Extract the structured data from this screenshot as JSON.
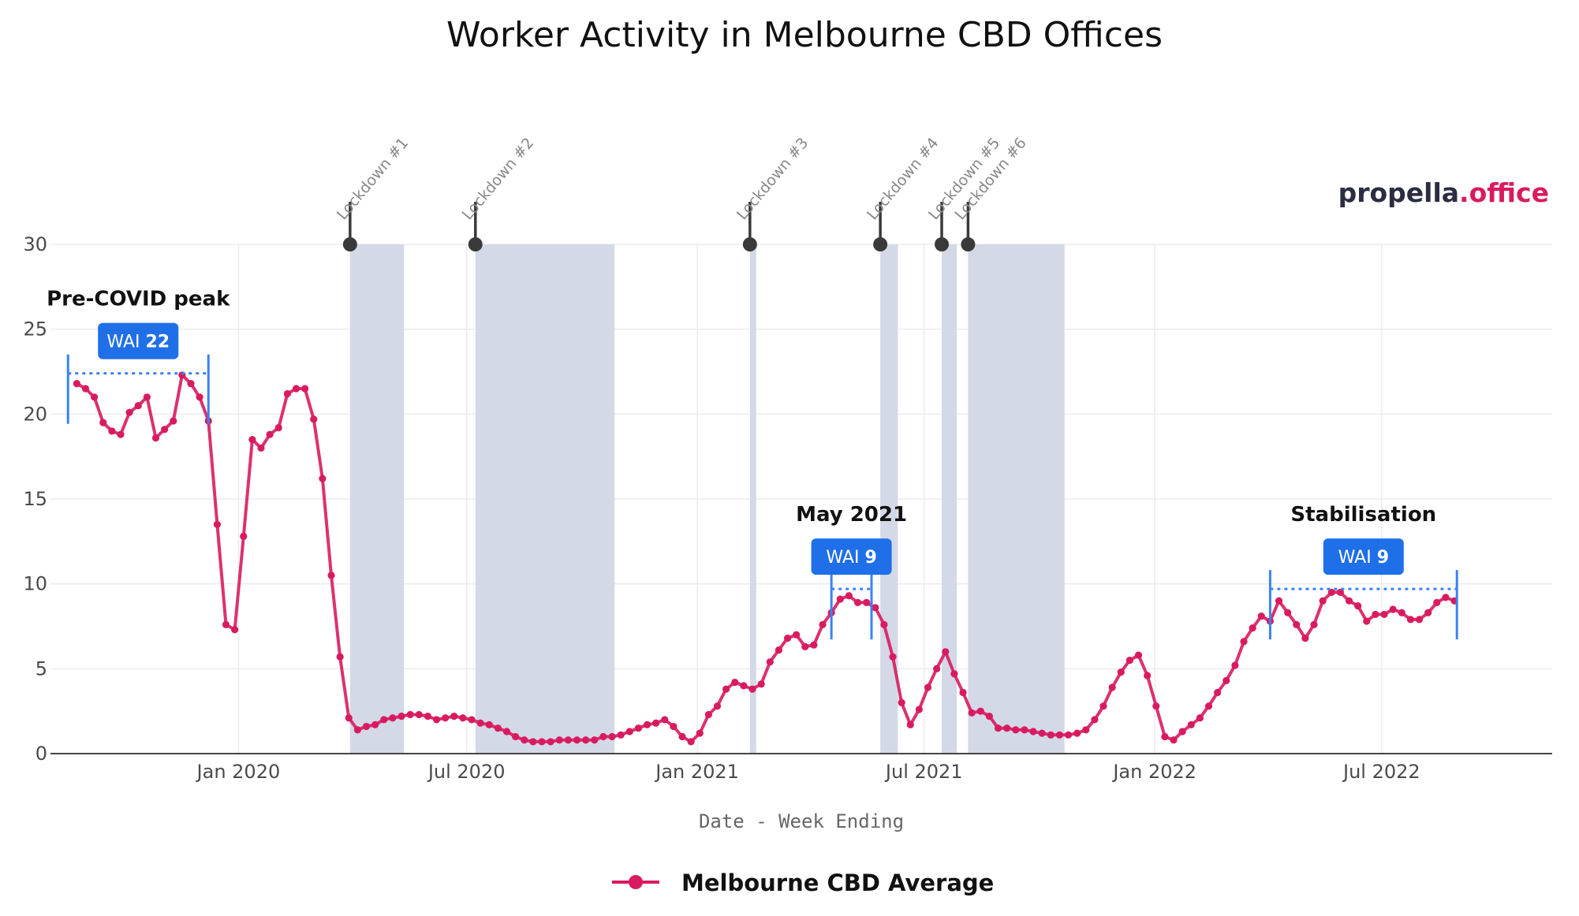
{
  "chart_data": {
    "type": "line",
    "title": "Worker Activity in Melbourne CBD Offices",
    "xlabel": "Date - Week Ending",
    "ylabel": "",
    "ylim": [
      0,
      30
    ],
    "yticks": [
      0,
      5,
      10,
      15,
      20,
      25,
      30
    ],
    "xlim": [
      "2019-08-04",
      "2022-11-14"
    ],
    "xticks": [
      {
        "date": "2020-01-01",
        "label": "Jan 2020"
      },
      {
        "date": "2020-07-01",
        "label": "Jul 2020"
      },
      {
        "date": "2021-01-01",
        "label": "Jan 2021"
      },
      {
        "date": "2021-07-01",
        "label": "Jul 2021"
      },
      {
        "date": "2022-01-01",
        "label": "Jan 2022"
      },
      {
        "date": "2022-07-01",
        "label": "Jul 2022"
      }
    ],
    "grid": true,
    "legend_position": "bottom-center",
    "series": [
      {
        "name": "Melbourne CBD Average",
        "color": "#d81b60",
        "points": [
          [
            "2019-08-25",
            21.8
          ],
          [
            "2019-09-01",
            21.5
          ],
          [
            "2019-09-08",
            21.0
          ],
          [
            "2019-09-15",
            19.5
          ],
          [
            "2019-09-22",
            19.0
          ],
          [
            "2019-09-29",
            18.8
          ],
          [
            "2019-10-06",
            20.1
          ],
          [
            "2019-10-13",
            20.5
          ],
          [
            "2019-10-20",
            21.0
          ],
          [
            "2019-10-27",
            18.6
          ],
          [
            "2019-11-03",
            19.1
          ],
          [
            "2019-11-10",
            19.6
          ],
          [
            "2019-11-17",
            22.3
          ],
          [
            "2019-11-24",
            21.8
          ],
          [
            "2019-12-01",
            21.0
          ],
          [
            "2019-12-08",
            19.6
          ],
          [
            "2019-12-15",
            13.5
          ],
          [
            "2019-12-22",
            7.6
          ],
          [
            "2019-12-29",
            7.3
          ],
          [
            "2020-01-05",
            12.8
          ],
          [
            "2020-01-12",
            18.5
          ],
          [
            "2020-01-19",
            18.0
          ],
          [
            "2020-01-26",
            18.8
          ],
          [
            "2020-02-02",
            19.2
          ],
          [
            "2020-02-09",
            21.2
          ],
          [
            "2020-02-16",
            21.5
          ],
          [
            "2020-02-23",
            21.5
          ],
          [
            "2020-03-01",
            19.7
          ],
          [
            "2020-03-08",
            16.2
          ],
          [
            "2020-03-15",
            10.5
          ],
          [
            "2020-03-22",
            5.7
          ],
          [
            "2020-03-29",
            2.1
          ],
          [
            "2020-04-05",
            1.4
          ],
          [
            "2020-04-12",
            1.6
          ],
          [
            "2020-04-19",
            1.7
          ],
          [
            "2020-04-26",
            2.0
          ],
          [
            "2020-05-03",
            2.1
          ],
          [
            "2020-05-10",
            2.2
          ],
          [
            "2020-05-17",
            2.3
          ],
          [
            "2020-05-24",
            2.3
          ],
          [
            "2020-05-31",
            2.2
          ],
          [
            "2020-06-07",
            2.0
          ],
          [
            "2020-06-14",
            2.1
          ],
          [
            "2020-06-21",
            2.2
          ],
          [
            "2020-06-28",
            2.1
          ],
          [
            "2020-07-05",
            2.0
          ],
          [
            "2020-07-12",
            1.8
          ],
          [
            "2020-07-19",
            1.7
          ],
          [
            "2020-07-26",
            1.5
          ],
          [
            "2020-08-02",
            1.3
          ],
          [
            "2020-08-09",
            1.0
          ],
          [
            "2020-08-16",
            0.8
          ],
          [
            "2020-08-23",
            0.7
          ],
          [
            "2020-08-30",
            0.7
          ],
          [
            "2020-09-06",
            0.7
          ],
          [
            "2020-09-13",
            0.8
          ],
          [
            "2020-09-20",
            0.8
          ],
          [
            "2020-09-27",
            0.8
          ],
          [
            "2020-10-04",
            0.8
          ],
          [
            "2020-10-11",
            0.8
          ],
          [
            "2020-10-18",
            1.0
          ],
          [
            "2020-10-25",
            1.0
          ],
          [
            "2020-11-01",
            1.1
          ],
          [
            "2020-11-08",
            1.3
          ],
          [
            "2020-11-15",
            1.5
          ],
          [
            "2020-11-22",
            1.7
          ],
          [
            "2020-11-29",
            1.8
          ],
          [
            "2020-12-06",
            2.0
          ],
          [
            "2020-12-13",
            1.6
          ],
          [
            "2020-12-20",
            1.0
          ],
          [
            "2020-12-27",
            0.7
          ],
          [
            "2021-01-03",
            1.2
          ],
          [
            "2021-01-10",
            2.3
          ],
          [
            "2021-01-17",
            2.8
          ],
          [
            "2021-01-24",
            3.8
          ],
          [
            "2021-01-31",
            4.2
          ],
          [
            "2021-02-07",
            4.0
          ],
          [
            "2021-02-14",
            3.8
          ],
          [
            "2021-02-21",
            4.1
          ],
          [
            "2021-02-28",
            5.4
          ],
          [
            "2021-03-07",
            6.1
          ],
          [
            "2021-03-14",
            6.8
          ],
          [
            "2021-03-21",
            7.0
          ],
          [
            "2021-03-28",
            6.3
          ],
          [
            "2021-04-04",
            6.4
          ],
          [
            "2021-04-11",
            7.6
          ],
          [
            "2021-04-18",
            8.3
          ],
          [
            "2021-04-25",
            9.1
          ],
          [
            "2021-05-02",
            9.3
          ],
          [
            "2021-05-09",
            8.9
          ],
          [
            "2021-05-16",
            8.9
          ],
          [
            "2021-05-23",
            8.6
          ],
          [
            "2021-05-30",
            7.6
          ],
          [
            "2021-06-06",
            5.7
          ],
          [
            "2021-06-13",
            3.0
          ],
          [
            "2021-06-20",
            1.7
          ],
          [
            "2021-06-27",
            2.6
          ],
          [
            "2021-07-04",
            3.9
          ],
          [
            "2021-07-11",
            5.0
          ],
          [
            "2021-07-18",
            6.0
          ],
          [
            "2021-07-25",
            4.7
          ],
          [
            "2021-08-01",
            3.6
          ],
          [
            "2021-08-08",
            2.4
          ],
          [
            "2021-08-15",
            2.5
          ],
          [
            "2021-08-22",
            2.2
          ],
          [
            "2021-08-29",
            1.5
          ],
          [
            "2021-09-05",
            1.5
          ],
          [
            "2021-09-12",
            1.4
          ],
          [
            "2021-09-19",
            1.4
          ],
          [
            "2021-09-26",
            1.3
          ],
          [
            "2021-10-03",
            1.2
          ],
          [
            "2021-10-10",
            1.1
          ],
          [
            "2021-10-17",
            1.1
          ],
          [
            "2021-10-24",
            1.1
          ],
          [
            "2021-10-31",
            1.2
          ],
          [
            "2021-11-07",
            1.4
          ],
          [
            "2021-11-14",
            2.0
          ],
          [
            "2021-11-21",
            2.8
          ],
          [
            "2021-11-28",
            3.9
          ],
          [
            "2021-12-05",
            4.8
          ],
          [
            "2021-12-12",
            5.5
          ],
          [
            "2021-12-19",
            5.8
          ],
          [
            "2021-12-26",
            4.6
          ],
          [
            "2022-01-02",
            2.8
          ],
          [
            "2022-01-09",
            1.0
          ],
          [
            "2022-01-16",
            0.8
          ],
          [
            "2022-01-23",
            1.3
          ],
          [
            "2022-01-30",
            1.7
          ],
          [
            "2022-02-06",
            2.1
          ],
          [
            "2022-02-13",
            2.8
          ],
          [
            "2022-02-20",
            3.6
          ],
          [
            "2022-02-27",
            4.3
          ],
          [
            "2022-03-06",
            5.2
          ],
          [
            "2022-03-13",
            6.6
          ],
          [
            "2022-03-20",
            7.4
          ],
          [
            "2022-03-27",
            8.1
          ],
          [
            "2022-04-03",
            7.8
          ],
          [
            "2022-04-10",
            9.0
          ],
          [
            "2022-04-17",
            8.3
          ],
          [
            "2022-04-24",
            7.6
          ],
          [
            "2022-05-01",
            6.8
          ],
          [
            "2022-05-08",
            7.6
          ],
          [
            "2022-05-15",
            9.0
          ],
          [
            "2022-05-22",
            9.5
          ],
          [
            "2022-05-29",
            9.5
          ],
          [
            "2022-06-05",
            9.0
          ],
          [
            "2022-06-12",
            8.7
          ],
          [
            "2022-06-19",
            7.8
          ],
          [
            "2022-06-26",
            8.2
          ],
          [
            "2022-07-03",
            8.2
          ],
          [
            "2022-07-10",
            8.5
          ],
          [
            "2022-07-17",
            8.3
          ],
          [
            "2022-07-24",
            7.9
          ],
          [
            "2022-07-31",
            7.9
          ],
          [
            "2022-08-07",
            8.3
          ],
          [
            "2022-08-14",
            8.9
          ],
          [
            "2022-08-21",
            9.2
          ],
          [
            "2022-08-28",
            9.0
          ]
        ]
      }
    ],
    "lockdowns": [
      {
        "label": "Lockdown #1",
        "start": "2020-03-30",
        "end": "2020-05-12"
      },
      {
        "label": "Lockdown #2",
        "start": "2020-07-08",
        "end": "2020-10-27"
      },
      {
        "label": "Lockdown #3",
        "start": "2021-02-12",
        "end": "2021-02-17"
      },
      {
        "label": "Lockdown #4",
        "start": "2021-05-27",
        "end": "2021-06-10"
      },
      {
        "label": "Lockdown #5",
        "start": "2021-07-15",
        "end": "2021-07-27"
      },
      {
        "label": "Lockdown #6",
        "start": "2021-08-05",
        "end": "2021-10-21"
      }
    ],
    "lockdown_fill_color": "#d3d9e6",
    "marker_color": "#3a3a3a",
    "annotations": [
      {
        "title": "Pre-COVID peak",
        "badge_prefix": "WAI",
        "badge_value": "22",
        "level": 22.4,
        "start": "2019-08-18",
        "end": "2019-12-08"
      },
      {
        "title": "May 2021",
        "badge_prefix": "WAI",
        "badge_value": "9",
        "level": 9.7,
        "start": "2021-04-18",
        "end": "2021-05-20"
      },
      {
        "title": "Stabilisation",
        "badge_prefix": "WAI",
        "badge_value": "9",
        "level": 9.7,
        "start": "2022-04-03",
        "end": "2022-08-30"
      }
    ],
    "annotation_color": "#3b82f6",
    "badge_color": "#1f6fe8"
  },
  "brand": {
    "name_part": "propella",
    "suffix_part": ".office",
    "name_color": "#2b2d42",
    "suffix_color": "#d81b60"
  }
}
